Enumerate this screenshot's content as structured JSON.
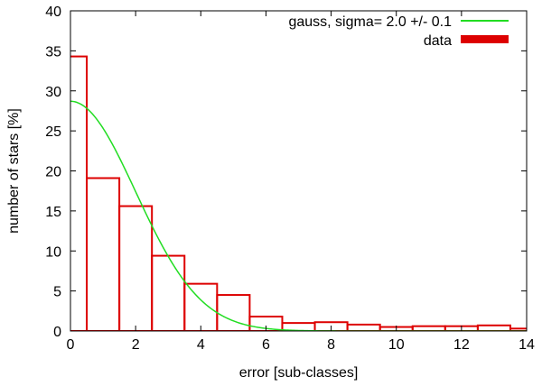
{
  "chart_data": {
    "type": "bar",
    "title": "",
    "xlabel": "error [sub-classes]",
    "ylabel": "number of stars [%]",
    "xlim": [
      0,
      14
    ],
    "ylim": [
      0,
      40
    ],
    "xticks": [
      0,
      2,
      4,
      6,
      8,
      10,
      12,
      14
    ],
    "yticks": [
      0,
      5,
      10,
      15,
      20,
      25,
      30,
      35,
      40
    ],
    "grid": false,
    "legend_position": "top-right",
    "series": [
      {
        "name": "gauss, sigma= 2.0 +/- 0.1",
        "type": "line",
        "color": "#22dd22",
        "model": "gaussian",
        "mu": 0,
        "sigma": 2.0,
        "amplitude": 28.7
      },
      {
        "name": "data",
        "type": "histogram",
        "color": "#dd0000",
        "bins": [
          {
            "x0": -0.5,
            "x1": 0.5,
            "value": 34.3
          },
          {
            "x0": 0.5,
            "x1": 1.5,
            "value": 19.1
          },
          {
            "x0": 1.5,
            "x1": 2.5,
            "value": 15.6
          },
          {
            "x0": 2.5,
            "x1": 3.5,
            "value": 9.4
          },
          {
            "x0": 3.5,
            "x1": 4.5,
            "value": 5.9
          },
          {
            "x0": 4.5,
            "x1": 5.5,
            "value": 4.5
          },
          {
            "x0": 5.5,
            "x1": 6.5,
            "value": 1.8
          },
          {
            "x0": 6.5,
            "x1": 7.5,
            "value": 1.0
          },
          {
            "x0": 7.5,
            "x1": 8.5,
            "value": 1.1
          },
          {
            "x0": 8.5,
            "x1": 9.5,
            "value": 0.8
          },
          {
            "x0": 9.5,
            "x1": 10.5,
            "value": 0.5
          },
          {
            "x0": 10.5,
            "x1": 11.5,
            "value": 0.6
          },
          {
            "x0": 11.5,
            "x1": 12.5,
            "value": 0.6
          },
          {
            "x0": 12.5,
            "x1": 13.5,
            "value": 0.7
          },
          {
            "x0": 13.5,
            "x1": 14.5,
            "value": 0.3
          }
        ]
      }
    ]
  }
}
